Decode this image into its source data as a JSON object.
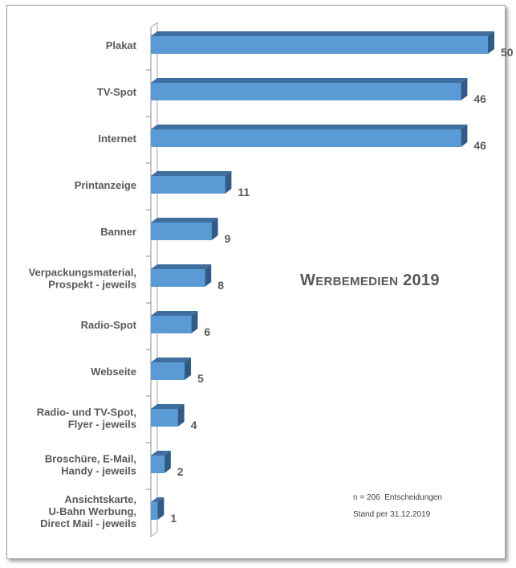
{
  "chart_data": {
    "type": "bar",
    "orientation": "horizontal",
    "title": "Werbemedien 2019",
    "categories": [
      "Plakat",
      "TV-Spot",
      "Internet",
      "Printanzeige",
      "Banner",
      "Verpackungsmaterial,\nProspekt - jeweils",
      "Radio-Spot",
      "Webseite",
      "Radio- und TV-Spot,\nFlyer - jeweils",
      "Broschüre, E-Mail,\nHandy - jeweils",
      "Ansichtskarte,\nU-Bahn Werbung,\nDirect Mail - jeweils"
    ],
    "values": [
      50,
      46,
      46,
      11,
      9,
      8,
      6,
      5,
      4,
      2,
      1
    ],
    "xlim": [
      0,
      50
    ],
    "grid": false,
    "legend": "none",
    "bar_color": "#5b9bd5",
    "bar_side_color": "#2f5b86",
    "bar_top_color": "#3f6f9f"
  },
  "notes": {
    "sample": "n = 206  Entscheidungen",
    "date": "Stand per 31.12.2019"
  }
}
